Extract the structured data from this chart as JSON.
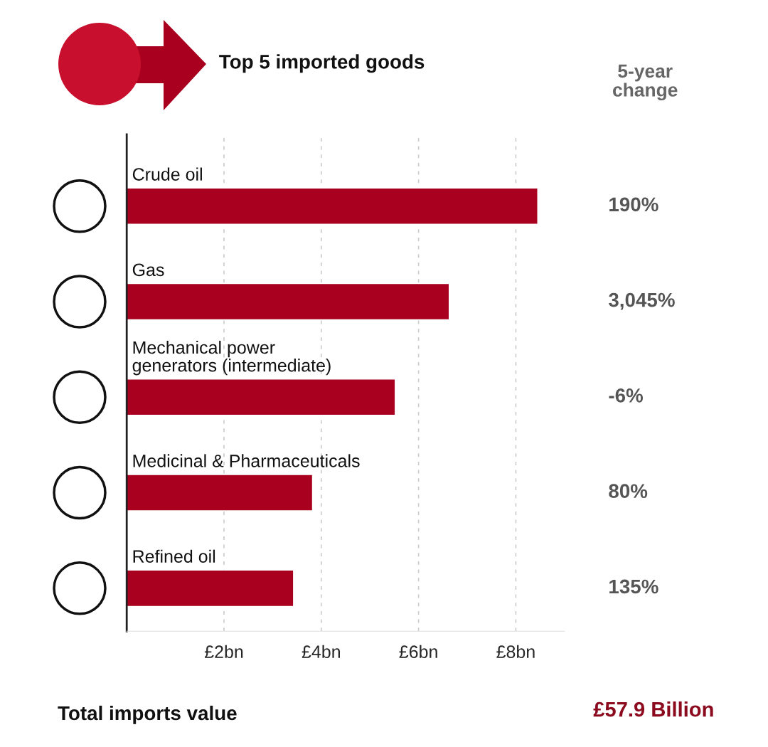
{
  "chart_data": {
    "type": "bar",
    "orientation": "horizontal",
    "title": "Top 5 imported goods",
    "categories": [
      "Crude oil",
      "Gas",
      "Mechanical power\ngenerators (intermediate)",
      "Medicinal & Pharmaceuticals",
      "Refined oil"
    ],
    "values": [
      8.45,
      6.63,
      5.52,
      3.82,
      3.43
    ],
    "color": "#a8001e",
    "xlim": [
      0,
      9
    ],
    "xticks": [
      {
        "value": 2,
        "label": "£2bn"
      },
      {
        "value": 4,
        "label": "£4bn"
      },
      {
        "value": 6,
        "label": "£6bn"
      },
      {
        "value": 8,
        "label": "£8bn"
      }
    ],
    "grid": "x",
    "annotations": [
      "5-year\nchange",
      "190%",
      "3,045%",
      "-6%",
      "80%",
      "135%",
      "Total imports value",
      "£57.9 Billion"
    ]
  }
}
